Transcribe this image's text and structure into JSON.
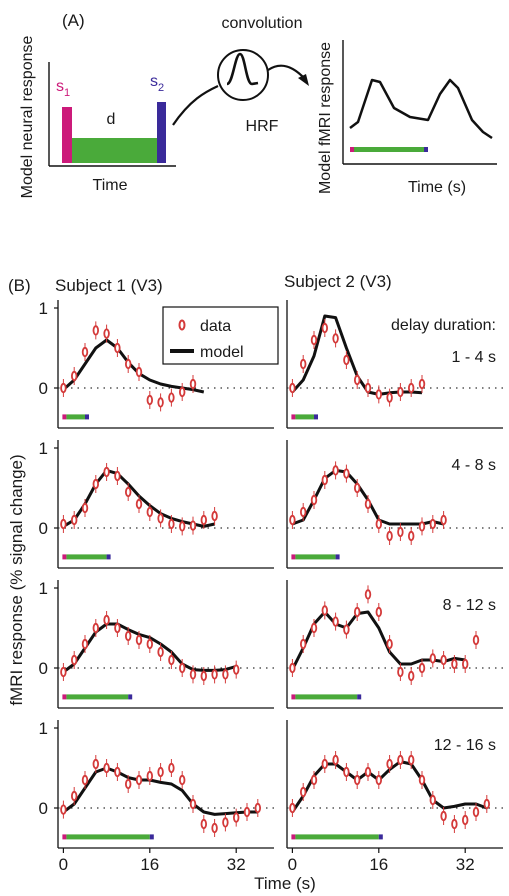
{
  "panel_a": {
    "label": "(A)",
    "left": {
      "ylabel": "Model neural response",
      "xlabel": "Time",
      "s1": "s",
      "s1_sub": "1",
      "s2": "s",
      "s2_sub": "2",
      "d": "d"
    },
    "middle": {
      "title": "convolution",
      "hrf": "HRF"
    },
    "right": {
      "ylabel": "Model fMRI response",
      "xlabel": "Time (s)"
    }
  },
  "panel_b": {
    "label": "(B)",
    "col_titles": [
      "Subject 1 (V3)",
      "Subject 2 (V3)"
    ],
    "ylabel": "fMRI response (% signal change)",
    "xlabel": "Time (s)",
    "legend": {
      "data": "data",
      "model": "model"
    },
    "delay_header": "delay duration:",
    "x_ticks": [
      "0",
      "16",
      "32"
    ],
    "y_ticks": [
      "1",
      "0"
    ]
  },
  "colors": {
    "s1": "#cc1a7a",
    "delay": "#4aaa3a",
    "s2": "#3a2a9a",
    "data": "#d43a3a",
    "model": "#111111"
  },
  "chart_data": {
    "type": "line",
    "title": "",
    "xlabel": "Time (s)",
    "ylabel": "fMRI response (% signal change)",
    "xlim": [
      -1,
      39
    ],
    "ylim": [
      -0.5,
      1.1
    ],
    "rows": [
      {
        "delay_label": "1 - 4 s",
        "delay_end": 4,
        "subject1": {
          "data_x": [
            0,
            2,
            4,
            6,
            8,
            10,
            12,
            14,
            16,
            18,
            20,
            22,
            24
          ],
          "data_y": [
            0.0,
            0.15,
            0.45,
            0.72,
            0.68,
            0.5,
            0.3,
            0.2,
            -0.15,
            -0.18,
            -0.12,
            -0.05,
            0.05
          ],
          "model_x": [
            0,
            2,
            4,
            6,
            8,
            10,
            12,
            14,
            16,
            18,
            20,
            22,
            24,
            26
          ],
          "model_y": [
            -0.02,
            0.1,
            0.3,
            0.5,
            0.6,
            0.5,
            0.32,
            0.18,
            0.1,
            0.05,
            0.02,
            0.0,
            -0.02,
            -0.05
          ]
        },
        "subject2": {
          "data_x": [
            0,
            2,
            4,
            6,
            8,
            10,
            12,
            14,
            16,
            18,
            20,
            22,
            24
          ],
          "data_y": [
            0.0,
            0.3,
            0.6,
            0.75,
            0.62,
            0.35,
            0.1,
            0.0,
            -0.08,
            -0.12,
            -0.05,
            0.0,
            0.05
          ],
          "model_x": [
            0,
            2,
            4,
            6,
            8,
            10,
            12,
            14,
            16,
            18,
            20,
            22,
            24
          ],
          "model_y": [
            -0.05,
            0.1,
            0.4,
            0.9,
            0.88,
            0.5,
            0.15,
            -0.05,
            -0.08,
            -0.06,
            -0.05,
            -0.05,
            -0.06
          ]
        }
      },
      {
        "delay_label": "4 - 8 s",
        "delay_end": 8,
        "subject1": {
          "data_x": [
            0,
            2,
            4,
            6,
            8,
            10,
            12,
            14,
            16,
            18,
            20,
            22,
            24,
            26,
            28
          ],
          "data_y": [
            0.05,
            0.1,
            0.25,
            0.55,
            0.7,
            0.65,
            0.45,
            0.3,
            0.2,
            0.12,
            0.05,
            0.02,
            0.03,
            0.1,
            0.15
          ],
          "model_x": [
            0,
            2,
            4,
            6,
            8,
            10,
            12,
            14,
            16,
            18,
            20,
            22,
            24,
            26,
            28
          ],
          "model_y": [
            0.02,
            0.1,
            0.3,
            0.55,
            0.72,
            0.68,
            0.55,
            0.4,
            0.28,
            0.18,
            0.12,
            0.08,
            0.05,
            0.02,
            0.05
          ]
        },
        "subject2": {
          "data_x": [
            0,
            2,
            4,
            6,
            8,
            10,
            12,
            14,
            16,
            18,
            20,
            22,
            24,
            26,
            28
          ],
          "data_y": [
            0.1,
            0.2,
            0.35,
            0.6,
            0.72,
            0.68,
            0.5,
            0.3,
            0.05,
            -0.1,
            -0.05,
            -0.1,
            0.02,
            0.05,
            0.1
          ],
          "model_x": [
            0,
            2,
            4,
            6,
            8,
            10,
            12,
            14,
            16,
            18,
            20,
            22,
            24,
            26,
            28
          ],
          "model_y": [
            0.05,
            0.1,
            0.35,
            0.62,
            0.72,
            0.7,
            0.55,
            0.35,
            0.1,
            0.05,
            0.05,
            0.05,
            0.05,
            0.08,
            0.05
          ]
        }
      },
      {
        "delay_label": "8 - 12 s",
        "delay_end": 12,
        "subject1": {
          "data_x": [
            0,
            2,
            4,
            6,
            8,
            10,
            12,
            14,
            16,
            18,
            20,
            22,
            24,
            26,
            28,
            30,
            32
          ],
          "data_y": [
            -0.05,
            0.1,
            0.3,
            0.5,
            0.6,
            0.5,
            0.4,
            0.35,
            0.3,
            0.2,
            0.1,
            0.0,
            -0.08,
            -0.1,
            -0.08,
            -0.08,
            -0.02
          ],
          "model_x": [
            0,
            2,
            4,
            6,
            8,
            10,
            12,
            14,
            16,
            18,
            20,
            22,
            24,
            26,
            28,
            30,
            32
          ],
          "model_y": [
            -0.05,
            0.05,
            0.25,
            0.45,
            0.55,
            0.55,
            0.48,
            0.42,
            0.38,
            0.3,
            0.2,
            0.05,
            -0.02,
            -0.03,
            -0.03,
            -0.02,
            0.02
          ]
        },
        "subject2": {
          "data_x": [
            0,
            2,
            4,
            6,
            8,
            10,
            12,
            14,
            16,
            18,
            20,
            22,
            24,
            26,
            28,
            30,
            32,
            34
          ],
          "data_y": [
            0.0,
            0.3,
            0.5,
            0.72,
            0.58,
            0.48,
            0.7,
            0.92,
            0.7,
            0.3,
            -0.05,
            -0.1,
            0.0,
            0.12,
            0.1,
            0.05,
            0.05,
            0.35
          ],
          "model_x": [
            0,
            2,
            4,
            6,
            8,
            10,
            12,
            14,
            16,
            18,
            20,
            22,
            24,
            26,
            28,
            30,
            32
          ],
          "model_y": [
            -0.02,
            0.25,
            0.55,
            0.7,
            0.55,
            0.5,
            0.68,
            0.7,
            0.5,
            0.2,
            0.05,
            0.05,
            0.1,
            0.1,
            0.08,
            0.12,
            0.1
          ]
        }
      },
      {
        "delay_label": "12 - 16 s",
        "delay_end": 16,
        "subject1": {
          "data_x": [
            0,
            2,
            4,
            6,
            8,
            10,
            12,
            14,
            16,
            18,
            20,
            22,
            24,
            26,
            28,
            30,
            32,
            34,
            36
          ],
          "data_y": [
            -0.02,
            0.15,
            0.35,
            0.55,
            0.5,
            0.45,
            0.3,
            0.35,
            0.4,
            0.45,
            0.5,
            0.35,
            0.05,
            -0.2,
            -0.25,
            -0.18,
            -0.12,
            -0.05,
            0.0
          ],
          "model_x": [
            0,
            2,
            4,
            6,
            8,
            10,
            12,
            14,
            16,
            18,
            20,
            22,
            24,
            26,
            28,
            30,
            32,
            34,
            36
          ],
          "model_y": [
            -0.05,
            0.05,
            0.25,
            0.45,
            0.5,
            0.45,
            0.38,
            0.35,
            0.35,
            0.32,
            0.3,
            0.22,
            0.05,
            -0.05,
            -0.08,
            -0.07,
            -0.06,
            -0.05,
            -0.05
          ]
        },
        "subject2": {
          "data_x": [
            0,
            2,
            4,
            6,
            8,
            10,
            12,
            14,
            16,
            18,
            20,
            22,
            24,
            26,
            28,
            30,
            32,
            34,
            36
          ],
          "data_y": [
            0.0,
            0.2,
            0.35,
            0.55,
            0.6,
            0.45,
            0.35,
            0.45,
            0.35,
            0.55,
            0.6,
            0.6,
            0.35,
            0.1,
            -0.1,
            -0.2,
            -0.15,
            -0.05,
            0.05
          ],
          "model_x": [
            0,
            2,
            4,
            6,
            8,
            10,
            12,
            14,
            16,
            18,
            20,
            22,
            24,
            26,
            28,
            30,
            32,
            34,
            36
          ],
          "model_y": [
            -0.05,
            0.15,
            0.4,
            0.55,
            0.55,
            0.45,
            0.35,
            0.45,
            0.35,
            0.48,
            0.58,
            0.55,
            0.35,
            0.1,
            0.0,
            0.02,
            0.05,
            0.05,
            0.0
          ]
        }
      }
    ]
  }
}
